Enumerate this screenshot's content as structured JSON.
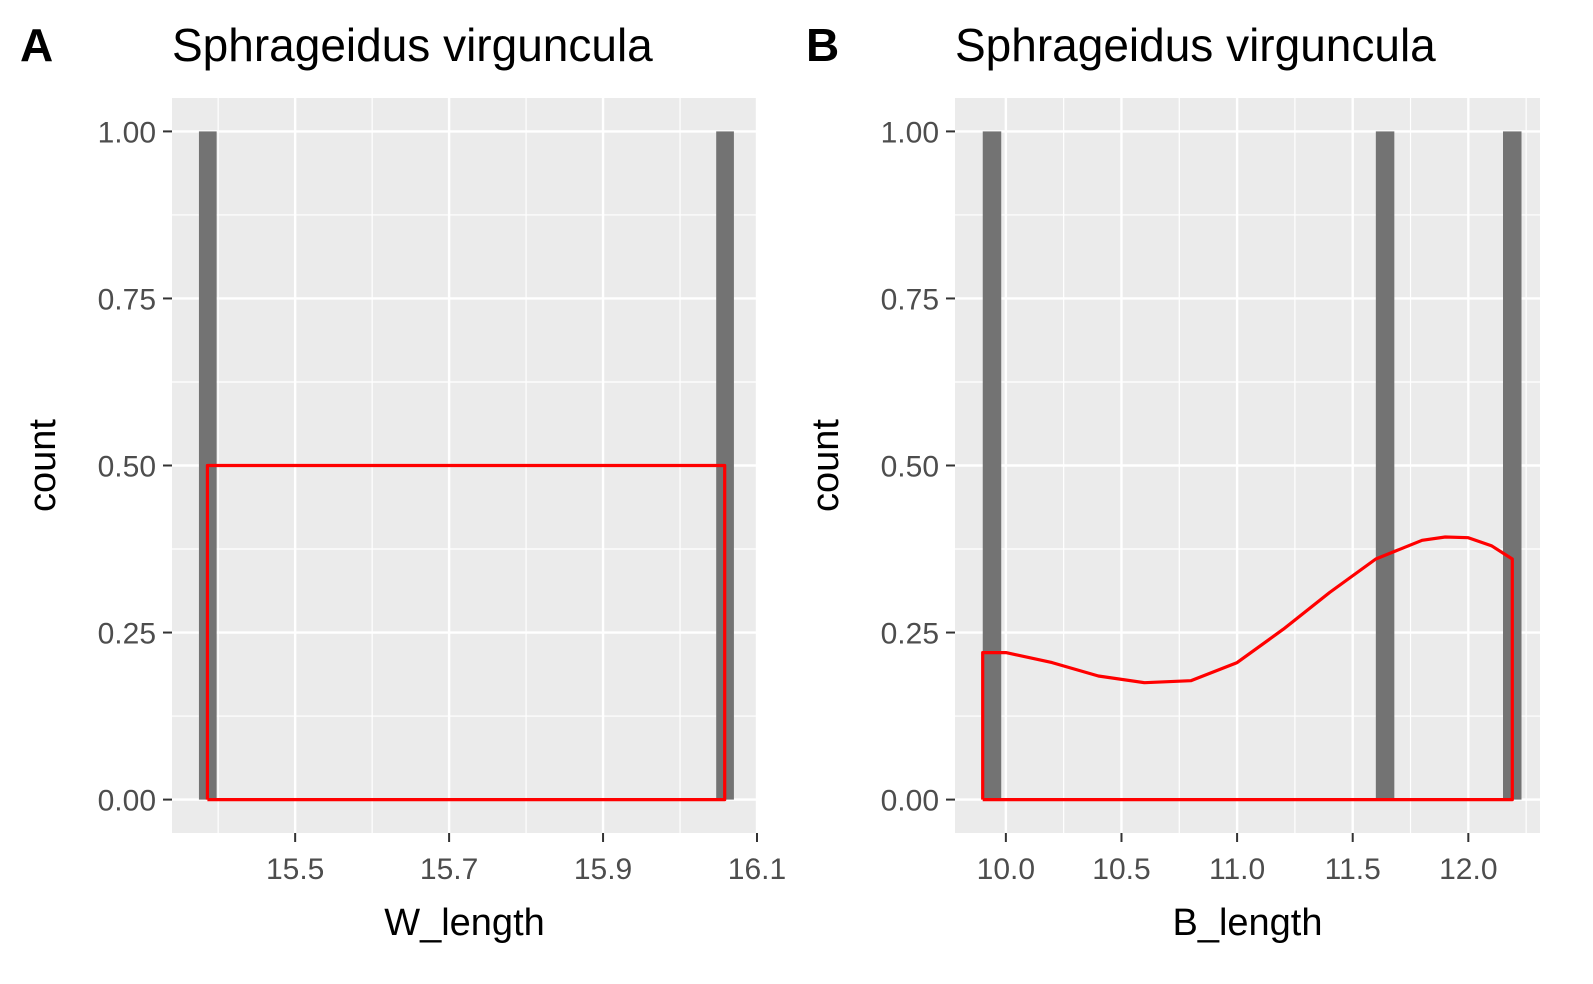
{
  "panels": [
    {
      "tag": "A",
      "title": "Sphrageidus virguncula"
    },
    {
      "tag": "B",
      "title": "Sphrageidus virguncula"
    }
  ],
  "colors": {
    "panel_bg": "#EBEBEB",
    "grid": "#FFFFFF",
    "bar": "#737373",
    "density_line": "#FF0000",
    "text": "#4D4D4D"
  },
  "chart_data": [
    {
      "type": "bar",
      "title": "Sphrageidus virguncula",
      "xlabel": "W_length",
      "ylabel": "count",
      "xlim": [
        15.34,
        16.1
      ],
      "ylim": [
        -0.05,
        1.05
      ],
      "x_ticks": [
        15.5,
        15.7,
        15.9,
        16.1
      ],
      "x_tick_labels": [
        "15.5",
        "15.7",
        "15.9",
        "16.1"
      ],
      "y_ticks": [
        0,
        0.25,
        0.5,
        0.75,
        1
      ],
      "y_tick_labels": [
        "0.00",
        "0.25",
        "0.50",
        "0.75",
        "1.00"
      ],
      "bars": [
        {
          "x_start": 15.375,
          "x_end": 15.398,
          "count": 1
        },
        {
          "x_start": 16.047,
          "x_end": 16.07,
          "count": 1
        }
      ],
      "density": {
        "name": "density",
        "color": "#FF0000",
        "x": [
          15.386,
          15.386,
          16.058,
          16.058,
          15.386
        ],
        "y": [
          0,
          0.5,
          0.5,
          0,
          0
        ]
      },
      "grid": true
    },
    {
      "type": "bar",
      "title": "Sphrageidus virguncula",
      "xlabel": "B_length",
      "ylabel": "count",
      "xlim": [
        9.78,
        12.31
      ],
      "ylim": [
        -0.05,
        1.05
      ],
      "x_ticks": [
        10.0,
        10.5,
        11.0,
        11.5,
        12.0
      ],
      "x_tick_labels": [
        "10.0",
        "10.5",
        "11.0",
        "11.5",
        "12.0"
      ],
      "y_ticks": [
        0,
        0.25,
        0.5,
        0.75,
        1
      ],
      "y_tick_labels": [
        "0.00",
        "0.25",
        "0.50",
        "0.75",
        "1.00"
      ],
      "bars": [
        {
          "x_start": 9.9,
          "x_end": 9.98,
          "count": 1
        },
        {
          "x_start": 11.6,
          "x_end": 11.68,
          "count": 1
        },
        {
          "x_start": 12.15,
          "x_end": 12.23,
          "count": 1
        }
      ],
      "density": {
        "name": "density",
        "color": "#FF0000",
        "x": [
          9.9,
          9.9,
          10.0,
          10.2,
          10.4,
          10.6,
          10.8,
          11.0,
          11.2,
          11.4,
          11.6,
          11.8,
          11.9,
          12.0,
          12.1,
          12.19,
          12.19,
          9.9
        ],
        "y": [
          0,
          0.22,
          0.22,
          0.205,
          0.185,
          0.175,
          0.178,
          0.205,
          0.255,
          0.31,
          0.36,
          0.388,
          0.393,
          0.392,
          0.38,
          0.36,
          0,
          0
        ]
      },
      "grid": true
    }
  ]
}
